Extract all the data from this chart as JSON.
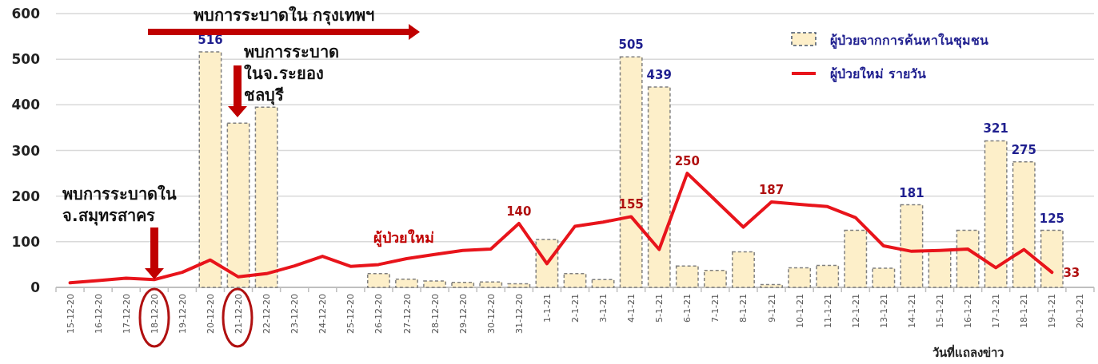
{
  "chart_data": {
    "type": "bar",
    "categories": [
      "15-12-20",
      "16-12-20",
      "17-12-20",
      "18-12-20",
      "19-12-20",
      "20-12-20",
      "21-12-20",
      "22-12-20",
      "23-12-20",
      "24-12-20",
      "25-12-20",
      "26-12-20",
      "27-12-20",
      "28-12-20",
      "29-12-20",
      "30-12-20",
      "31-12-20",
      "1-1-21",
      "2-1-21",
      "3-1-21",
      "4-1-21",
      "5-1-21",
      "6-1-21",
      "7-1-21",
      "8-1-21",
      "9-1-21",
      "10-1-21",
      "11-1-21",
      "12-1-21",
      "13-1-21",
      "14-1-21",
      "15-1-21",
      "16-1-21",
      "17-1-21",
      "18-1-21",
      "19-1-21",
      "20-1-21"
    ],
    "series": [
      {
        "name": "ผู้ป่วยจากการค้นหาในชุมชน",
        "color": "#fdefc9",
        "values": [
          null,
          null,
          null,
          null,
          null,
          516,
          360,
          395,
          null,
          null,
          null,
          30,
          18,
          14,
          11,
          12,
          8,
          105,
          30,
          17,
          505,
          439,
          47,
          37,
          78,
          6,
          43,
          48,
          125,
          42,
          181,
          80,
          125,
          321,
          275,
          125,
          null
        ],
        "value_labels": [
          null,
          null,
          null,
          null,
          null,
          "516",
          null,
          null,
          null,
          null,
          null,
          null,
          null,
          null,
          null,
          null,
          null,
          null,
          null,
          null,
          "505",
          "439",
          null,
          null,
          null,
          null,
          null,
          null,
          null,
          null,
          "181",
          null,
          null,
          "321",
          "275",
          "125",
          null
        ]
      },
      {
        "name": "ผู้ป่วยใหม่ รายวัน",
        "type": "line",
        "color": "#e8141b",
        "values": [
          10,
          15,
          20,
          17,
          33,
          60,
          23,
          30,
          47,
          68,
          46,
          50,
          63,
          72,
          81,
          84,
          140,
          52,
          134,
          143,
          155,
          83,
          250,
          191,
          132,
          187,
          182,
          177,
          153,
          91,
          79,
          81,
          84,
          43,
          83,
          33,
          null
        ],
        "value_labels": [
          null,
          null,
          null,
          null,
          null,
          null,
          null,
          null,
          null,
          null,
          null,
          null,
          null,
          null,
          null,
          null,
          "140",
          null,
          null,
          null,
          "155",
          null,
          "250",
          null,
          null,
          "187",
          null,
          null,
          null,
          null,
          null,
          null,
          null,
          null,
          null,
          "33",
          null
        ]
      }
    ],
    "xlabel": "วันที่แถลงข่าว",
    "ylim": [
      0,
      600
    ],
    "yticks": [
      0,
      100,
      200,
      300,
      400,
      500,
      600
    ],
    "grid": "y",
    "legend": "top right",
    "annotations": [
      "พบการระบาดใน กรุงเทพฯ",
      "ผู้ป่วยใหม่",
      "พบการระบาดใน จ.สมุทรสาคร",
      "พบการระบาด ในจ.ระยอง ชลบุรี"
    ]
  }
}
